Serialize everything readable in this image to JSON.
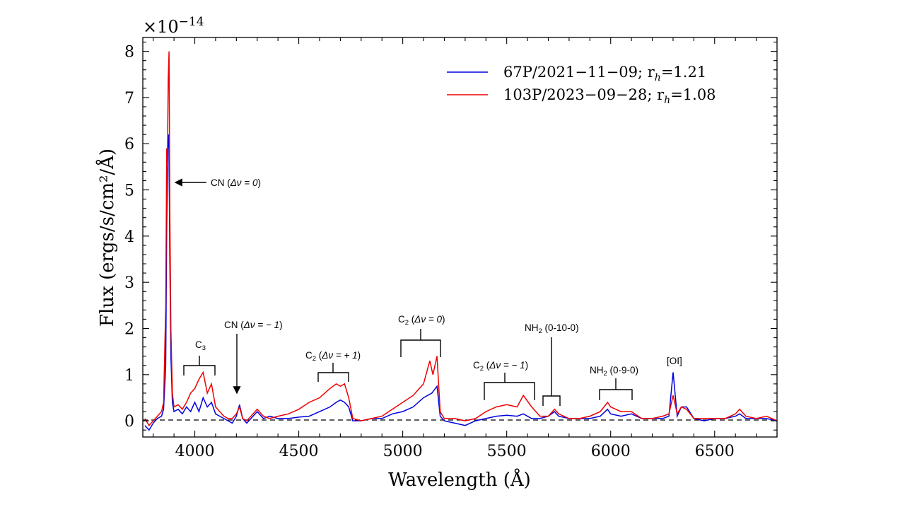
{
  "chart_data": {
    "type": "line",
    "xlabel": "Wavelength (Å)",
    "ylabel": "Flux (ergs/s/cm²/Å)",
    "y_multiplier": "×10",
    "y_multiplier_exp": "−14",
    "xlim": [
      3750,
      6800
    ],
    "ylim": [
      -0.35,
      8.3
    ],
    "x_ticks": [
      4000,
      4500,
      5000,
      5500,
      6000,
      6500
    ],
    "y_ticks": [
      0,
      1,
      2,
      3,
      4,
      5,
      6,
      7,
      8
    ],
    "grid": false,
    "legend_placement": "top-right",
    "zero_line": "dashed",
    "series": [
      {
        "name": "67P/2021−11−09; r",
        "name_sub": "h",
        "name_tail": "=1.21",
        "color": "#0000dd",
        "points": [
          [
            3760,
            -0.1
          ],
          [
            3780,
            -0.2
          ],
          [
            3800,
            -0.05
          ],
          [
            3820,
            0.05
          ],
          [
            3840,
            0.1
          ],
          [
            3850,
            0.25
          ],
          [
            3860,
            1.2
          ],
          [
            3865,
            4.2
          ],
          [
            3870,
            5.9
          ],
          [
            3875,
            6.2
          ],
          [
            3880,
            3.5
          ],
          [
            3885,
            1.4
          ],
          [
            3892,
            0.4
          ],
          [
            3900,
            0.2
          ],
          [
            3920,
            0.25
          ],
          [
            3940,
            0.15
          ],
          [
            3960,
            0.3
          ],
          [
            3980,
            0.2
          ],
          [
            4000,
            0.4
          ],
          [
            4020,
            0.2
          ],
          [
            4040,
            0.5
          ],
          [
            4060,
            0.3
          ],
          [
            4080,
            0.4
          ],
          [
            4100,
            0.15
          ],
          [
            4120,
            0.1
          ],
          [
            4140,
            0.05
          ],
          [
            4160,
            0.0
          ],
          [
            4180,
            -0.05
          ],
          [
            4200,
            0.1
          ],
          [
            4215,
            0.35
          ],
          [
            4230,
            0.05
          ],
          [
            4250,
            -0.05
          ],
          [
            4280,
            0.1
          ],
          [
            4300,
            0.2
          ],
          [
            4330,
            0.05
          ],
          [
            4360,
            0.1
          ],
          [
            4400,
            0.05
          ],
          [
            4450,
            0.05
          ],
          [
            4500,
            0.08
          ],
          [
            4550,
            0.1
          ],
          [
            4600,
            0.2
          ],
          [
            4650,
            0.3
          ],
          [
            4680,
            0.4
          ],
          [
            4700,
            0.45
          ],
          [
            4720,
            0.4
          ],
          [
            4740,
            0.3
          ],
          [
            4760,
            0.0
          ],
          [
            4800,
            0.0
          ],
          [
            4850,
            0.05
          ],
          [
            4900,
            0.05
          ],
          [
            4950,
            0.15
          ],
          [
            5000,
            0.2
          ],
          [
            5050,
            0.3
          ],
          [
            5100,
            0.5
          ],
          [
            5140,
            0.6
          ],
          [
            5165,
            0.75
          ],
          [
            5180,
            0.1
          ],
          [
            5200,
            0.0
          ],
          [
            5250,
            -0.05
          ],
          [
            5300,
            -0.1
          ],
          [
            5350,
            0.0
          ],
          [
            5400,
            0.05
          ],
          [
            5450,
            0.1
          ],
          [
            5500,
            0.12
          ],
          [
            5550,
            0.1
          ],
          [
            5580,
            0.15
          ],
          [
            5620,
            0.05
          ],
          [
            5660,
            0.05
          ],
          [
            5700,
            0.1
          ],
          [
            5730,
            0.2
          ],
          [
            5750,
            0.1
          ],
          [
            5800,
            0.05
          ],
          [
            5850,
            0.05
          ],
          [
            5900,
            0.05
          ],
          [
            5950,
            0.1
          ],
          [
            5985,
            0.25
          ],
          [
            6000,
            0.15
          ],
          [
            6050,
            0.1
          ],
          [
            6100,
            0.15
          ],
          [
            6150,
            0.05
          ],
          [
            6200,
            0.05
          ],
          [
            6250,
            0.05
          ],
          [
            6280,
            0.1
          ],
          [
            6300,
            1.05
          ],
          [
            6320,
            0.1
          ],
          [
            6340,
            0.3
          ],
          [
            6365,
            0.3
          ],
          [
            6400,
            0.05
          ],
          [
            6450,
            0.0
          ],
          [
            6500,
            0.05
          ],
          [
            6550,
            0.05
          ],
          [
            6600,
            0.1
          ],
          [
            6620,
            0.15
          ],
          [
            6650,
            0.05
          ],
          [
            6700,
            0.05
          ],
          [
            6750,
            0.05
          ],
          [
            6800,
            0.0
          ]
        ]
      },
      {
        "name": "103P/2023−09−28; r",
        "name_sub": "h",
        "name_tail": "=1.08",
        "color": "#ee0000",
        "points": [
          [
            3760,
            0.05
          ],
          [
            3780,
            -0.1
          ],
          [
            3800,
            0.0
          ],
          [
            3820,
            0.1
          ],
          [
            3840,
            0.2
          ],
          [
            3850,
            0.4
          ],
          [
            3860,
            2.5
          ],
          [
            3865,
            5.9
          ],
          [
            3868,
            5.5
          ],
          [
            3872,
            7.4
          ],
          [
            3876,
            8.0
          ],
          [
            3880,
            4.5
          ],
          [
            3885,
            2.0
          ],
          [
            3892,
            0.6
          ],
          [
            3900,
            0.3
          ],
          [
            3920,
            0.35
          ],
          [
            3940,
            0.25
          ],
          [
            3960,
            0.4
          ],
          [
            3980,
            0.6
          ],
          [
            4000,
            0.7
          ],
          [
            4020,
            0.9
          ],
          [
            4040,
            1.05
          ],
          [
            4060,
            0.6
          ],
          [
            4080,
            0.8
          ],
          [
            4100,
            0.3
          ],
          [
            4120,
            0.2
          ],
          [
            4140,
            0.1
          ],
          [
            4160,
            0.05
          ],
          [
            4180,
            0.05
          ],
          [
            4200,
            0.15
          ],
          [
            4215,
            0.3
          ],
          [
            4230,
            0.05
          ],
          [
            4250,
            0.0
          ],
          [
            4280,
            0.15
          ],
          [
            4300,
            0.25
          ],
          [
            4330,
            0.1
          ],
          [
            4360,
            0.05
          ],
          [
            4400,
            0.1
          ],
          [
            4450,
            0.15
          ],
          [
            4500,
            0.25
          ],
          [
            4550,
            0.4
          ],
          [
            4600,
            0.5
          ],
          [
            4650,
            0.7
          ],
          [
            4680,
            0.8
          ],
          [
            4700,
            0.75
          ],
          [
            4720,
            0.8
          ],
          [
            4740,
            0.5
          ],
          [
            4760,
            0.05
          ],
          [
            4800,
            0.0
          ],
          [
            4850,
            0.05
          ],
          [
            4900,
            0.1
          ],
          [
            4950,
            0.25
          ],
          [
            5000,
            0.4
          ],
          [
            5050,
            0.55
          ],
          [
            5100,
            0.8
          ],
          [
            5130,
            1.3
          ],
          [
            5145,
            1.0
          ],
          [
            5165,
            1.4
          ],
          [
            5180,
            0.2
          ],
          [
            5200,
            0.05
          ],
          [
            5250,
            0.05
          ],
          [
            5300,
            0.0
          ],
          [
            5350,
            0.05
          ],
          [
            5400,
            0.2
          ],
          [
            5450,
            0.3
          ],
          [
            5500,
            0.35
          ],
          [
            5550,
            0.3
          ],
          [
            5580,
            0.55
          ],
          [
            5620,
            0.3
          ],
          [
            5660,
            0.1
          ],
          [
            5700,
            0.1
          ],
          [
            5730,
            0.25
          ],
          [
            5750,
            0.15
          ],
          [
            5800,
            0.05
          ],
          [
            5850,
            0.05
          ],
          [
            5900,
            0.1
          ],
          [
            5950,
            0.2
          ],
          [
            5985,
            0.4
          ],
          [
            6000,
            0.3
          ],
          [
            6050,
            0.2
          ],
          [
            6100,
            0.2
          ],
          [
            6150,
            0.05
          ],
          [
            6200,
            0.05
          ],
          [
            6250,
            0.1
          ],
          [
            6280,
            0.15
          ],
          [
            6300,
            0.55
          ],
          [
            6320,
            0.15
          ],
          [
            6340,
            0.3
          ],
          [
            6365,
            0.25
          ],
          [
            6400,
            0.05
          ],
          [
            6450,
            0.05
          ],
          [
            6500,
            0.05
          ],
          [
            6550,
            0.05
          ],
          [
            6600,
            0.15
          ],
          [
            6620,
            0.25
          ],
          [
            6650,
            0.1
          ],
          [
            6700,
            0.05
          ],
          [
            6750,
            0.1
          ],
          [
            6800,
            0.0
          ]
        ]
      }
    ],
    "annotations": {
      "cn0": {
        "pre": "CN (",
        "mid": "Δν = 0",
        "post": ")"
      },
      "c3": {
        "main": "C",
        "sub": "3"
      },
      "cnm1": {
        "pre": "CN (",
        "mid": "Δν = − 1",
        "post": ")"
      },
      "c2p1": {
        "main": "C",
        "sub": "2",
        "pre": " (",
        "mid": "Δν = + 1",
        "post": ")"
      },
      "c2z": {
        "main": "C",
        "sub": "2",
        "pre": " (",
        "mid": "Δν = 0",
        "post": ")"
      },
      "c2m1": {
        "main": "C",
        "sub": "2",
        "pre": " (",
        "mid": "Δν = − 1",
        "post": ")"
      },
      "nh2a": {
        "main": "NH",
        "sub": "2",
        "post": " (0-10-0)"
      },
      "nh2b": {
        "main": "NH",
        "sub": "2",
        "post": " (0-9-0)"
      },
      "oi": {
        "text": "[OI]"
      }
    }
  }
}
